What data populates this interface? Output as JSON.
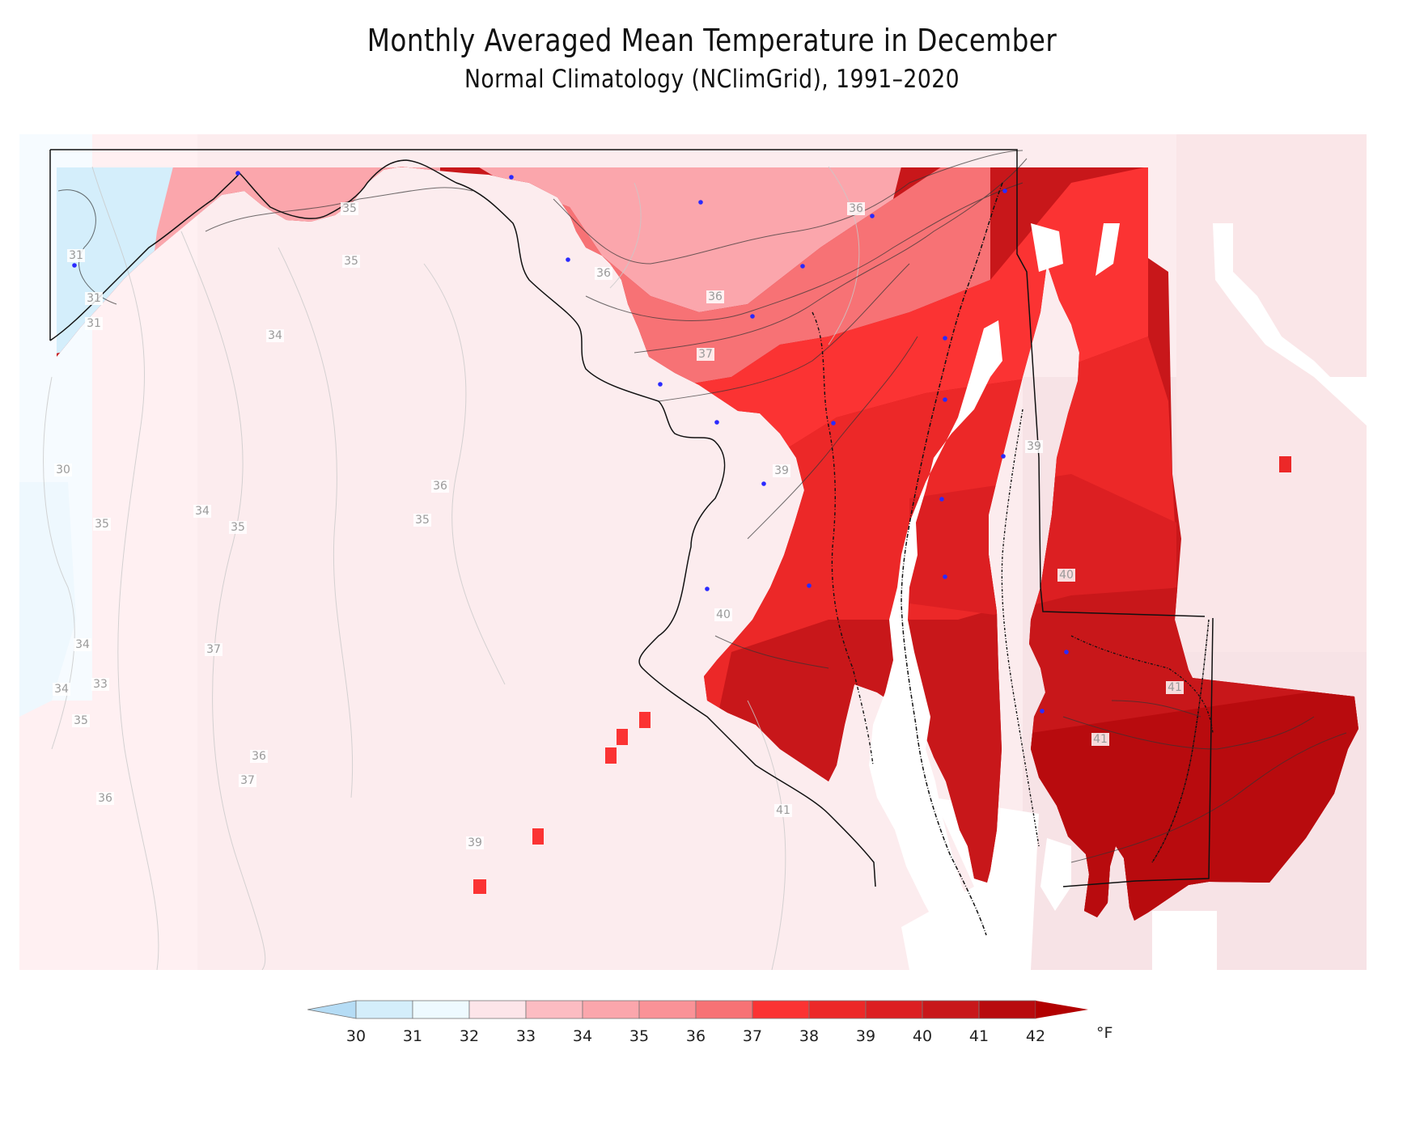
{
  "title": "Monthly Averaged Mean Temperature in December",
  "subtitle": "Normal Climatology (NClimGrid), 1991–2020",
  "colorbar": {
    "levels": [
      "30",
      "31",
      "32",
      "33",
      "34",
      "35",
      "36",
      "37",
      "38",
      "39",
      "40",
      "41",
      "42"
    ],
    "colors": [
      "#d4eefb",
      "#eefaff",
      "#fde5e9",
      "#fcbcc2",
      "#fba6ac",
      "#fa9297",
      "#f77275",
      "#fb3333",
      "#ec2828",
      "#dc1f22",
      "#c8171a",
      "#b80b0e"
    ],
    "under_color": "#b5dcf5",
    "over_color": "#b20000",
    "units": "°F"
  },
  "contour_labels": [
    {
      "text": "35"
    },
    {
      "text": "36"
    },
    {
      "text": "31"
    },
    {
      "text": "35"
    },
    {
      "text": "36"
    },
    {
      "text": "36"
    },
    {
      "text": "31"
    },
    {
      "text": "31"
    },
    {
      "text": "34"
    },
    {
      "text": "37"
    },
    {
      "text": "30"
    },
    {
      "text": "36"
    },
    {
      "text": "34"
    },
    {
      "text": "35"
    },
    {
      "text": "35"
    },
    {
      "text": "35"
    },
    {
      "text": "39"
    },
    {
      "text": "39"
    },
    {
      "text": "40"
    },
    {
      "text": "40"
    },
    {
      "text": "34"
    },
    {
      "text": "37"
    },
    {
      "text": "33"
    },
    {
      "text": "34"
    },
    {
      "text": "35"
    },
    {
      "text": "36"
    },
    {
      "text": "37"
    },
    {
      "text": "36"
    },
    {
      "text": "41"
    },
    {
      "text": "39"
    },
    {
      "text": "41"
    },
    {
      "text": "41"
    }
  ],
  "stations": 22
}
